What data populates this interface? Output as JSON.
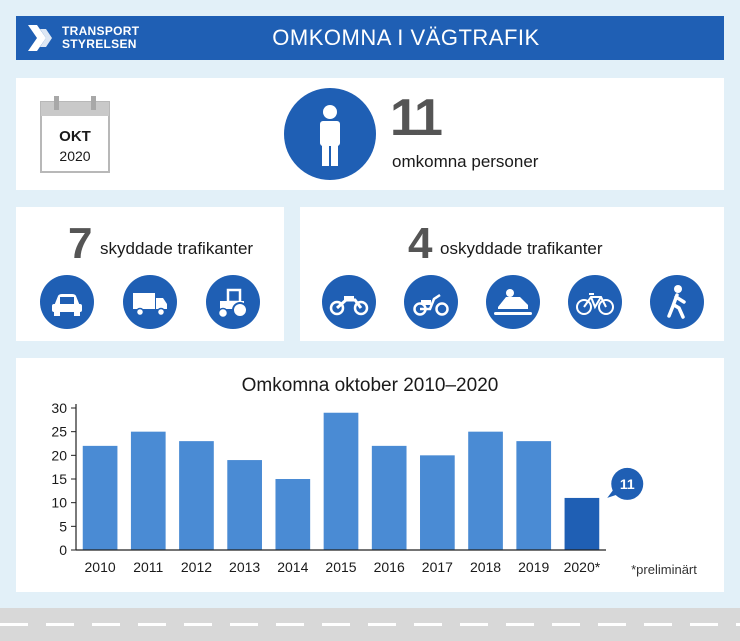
{
  "header": {
    "logo_line1": "TRANSPORT",
    "logo_line2": "STYRELSEN",
    "title": "OMKOMNA I VÄGTRAFIK"
  },
  "summary": {
    "month": "OKT",
    "year": "2020",
    "total": "11",
    "total_label": "omkomna personer"
  },
  "protected": {
    "count": "7",
    "label": "skyddade trafikanter",
    "icons": [
      "car-icon",
      "truck-icon",
      "tractor-icon"
    ]
  },
  "unprotected": {
    "count": "4",
    "label": "oskyddade trafikanter",
    "icons": [
      "motorcycle-icon",
      "moped-icon",
      "snowmobile-icon",
      "bicycle-icon",
      "pedestrian-icon"
    ]
  },
  "colors": {
    "brand": "#1f5fb4",
    "bar": "#4a8bd4",
    "bar_highlight": "#1f5fb4"
  },
  "chart_data": {
    "type": "bar",
    "title": "Omkomna oktober 2010–2020",
    "categories": [
      "2010",
      "2011",
      "2012",
      "2013",
      "2014",
      "2015",
      "2016",
      "2017",
      "2018",
      "2019",
      "2020*"
    ],
    "values": [
      22,
      25,
      23,
      19,
      15,
      29,
      22,
      20,
      25,
      23,
      11
    ],
    "ylim": [
      0,
      30
    ],
    "yticks": [
      0,
      5,
      10,
      15,
      20,
      25,
      30
    ],
    "highlight_index": 10,
    "callout": "11",
    "footnote": "*preliminärt"
  }
}
